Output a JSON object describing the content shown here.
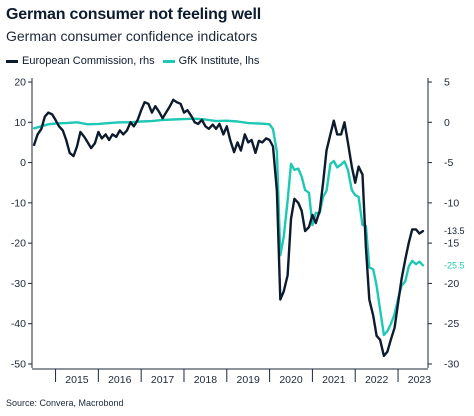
{
  "header": {
    "title": "German consumer not feeling well",
    "subtitle": "German consumer confidence indicators"
  },
  "legend": [
    {
      "label": "European Commission, rhs",
      "color": "#0d1b2e"
    },
    {
      "label": "GfK Institute, lhs",
      "color": "#1fc8b4"
    }
  ],
  "source": "Source: Convera, Macrobond",
  "chart_data": {
    "type": "line",
    "title": "German consumer confidence indicators",
    "x_range": [
      2014.45,
      2023.7
    ],
    "x_ticks": [
      "2015",
      "2016",
      "2017",
      "2018",
      "2019",
      "2020",
      "2021",
      "2022",
      "2023"
    ],
    "left_axis": {
      "range": [
        -51,
        21
      ],
      "ticks": [
        20,
        10,
        0,
        -10,
        -20,
        -30,
        -40,
        -50
      ],
      "series": "GfK Institute, lhs"
    },
    "right_axis": {
      "range": [
        -30.5,
        5.5
      ],
      "ticks": [
        5,
        0,
        -5,
        -10,
        -15,
        -20,
        -25,
        -30
      ],
      "series": "European Commission, rhs"
    },
    "grid": false,
    "legend_position": "top-left",
    "series": [
      {
        "name": "European Commission, rhs",
        "axis": "right",
        "color": "#0d1b2e",
        "end_label": "-13.5",
        "points": [
          [
            2014.5,
            -2.8
          ],
          [
            2014.58,
            -1.5
          ],
          [
            2014.67,
            -0.8
          ],
          [
            2014.75,
            0.7
          ],
          [
            2014.83,
            1.2
          ],
          [
            2014.92,
            1.0
          ],
          [
            2015.0,
            0.3
          ],
          [
            2015.08,
            -0.5
          ],
          [
            2015.17,
            -1.0
          ],
          [
            2015.25,
            -2.2
          ],
          [
            2015.33,
            -3.8
          ],
          [
            2015.42,
            -4.2
          ],
          [
            2015.5,
            -3.0
          ],
          [
            2015.58,
            -1.2
          ],
          [
            2015.67,
            -1.8
          ],
          [
            2015.75,
            -2.5
          ],
          [
            2015.83,
            -3.2
          ],
          [
            2015.92,
            -2.6
          ],
          [
            2016.0,
            -1.2
          ],
          [
            2016.08,
            -2.0
          ],
          [
            2016.17,
            -1.5
          ],
          [
            2016.25,
            -2.2
          ],
          [
            2016.33,
            -1.5
          ],
          [
            2016.42,
            -1.8
          ],
          [
            2016.5,
            -1.0
          ],
          [
            2016.58,
            -1.5
          ],
          [
            2016.67,
            -1.0
          ],
          [
            2016.75,
            0.0
          ],
          [
            2016.83,
            -0.5
          ],
          [
            2016.92,
            0.3
          ],
          [
            2017.0,
            1.5
          ],
          [
            2017.08,
            2.5
          ],
          [
            2017.17,
            2.3
          ],
          [
            2017.25,
            1.2
          ],
          [
            2017.33,
            2.0
          ],
          [
            2017.42,
            1.3
          ],
          [
            2017.5,
            0.5
          ],
          [
            2017.58,
            1.2
          ],
          [
            2017.67,
            2.0
          ],
          [
            2017.75,
            2.8
          ],
          [
            2017.83,
            2.5
          ],
          [
            2017.92,
            2.3
          ],
          [
            2018.0,
            1.2
          ],
          [
            2018.08,
            1.5
          ],
          [
            2018.17,
            0.8
          ],
          [
            2018.25,
            0.0
          ],
          [
            2018.33,
            -0.2
          ],
          [
            2018.42,
            0.3
          ],
          [
            2018.5,
            -0.5
          ],
          [
            2018.58,
            -0.8
          ],
          [
            2018.67,
            -0.3
          ],
          [
            2018.75,
            -0.8
          ],
          [
            2018.83,
            -0.2
          ],
          [
            2018.92,
            -1.5
          ],
          [
            2019.0,
            -0.5
          ],
          [
            2019.08,
            -2.2
          ],
          [
            2019.17,
            -3.7
          ],
          [
            2019.25,
            -2.5
          ],
          [
            2019.33,
            -3.5
          ],
          [
            2019.42,
            -1.5
          ],
          [
            2019.5,
            -2.5
          ],
          [
            2019.58,
            -2.2
          ],
          [
            2019.67,
            -3.8
          ],
          [
            2019.75,
            -2.3
          ],
          [
            2019.83,
            -2.5
          ],
          [
            2019.92,
            -2.0
          ],
          [
            2020.0,
            -2.2
          ],
          [
            2020.08,
            -3.0
          ],
          [
            2020.17,
            -8.5
          ],
          [
            2020.25,
            -22.0
          ],
          [
            2020.33,
            -21.0
          ],
          [
            2020.42,
            -19.0
          ],
          [
            2020.5,
            -12.0
          ],
          [
            2020.58,
            -9.5
          ],
          [
            2020.67,
            -10.0
          ],
          [
            2020.75,
            -11.0
          ],
          [
            2020.83,
            -13.5
          ],
          [
            2020.92,
            -13.0
          ],
          [
            2021.0,
            -11.5
          ],
          [
            2021.08,
            -12.5
          ],
          [
            2021.17,
            -11.0
          ],
          [
            2021.25,
            -7.5
          ],
          [
            2021.33,
            -3.5
          ],
          [
            2021.42,
            -1.5
          ],
          [
            2021.5,
            0.2
          ],
          [
            2021.58,
            -1.5
          ],
          [
            2021.67,
            -1.5
          ],
          [
            2021.75,
            0.0
          ],
          [
            2021.83,
            -2.5
          ],
          [
            2021.92,
            -5.5
          ],
          [
            2022.0,
            -7.5
          ],
          [
            2022.08,
            -5.5
          ],
          [
            2022.17,
            -6.5
          ],
          [
            2022.25,
            -15.5
          ],
          [
            2022.33,
            -22.0
          ],
          [
            2022.42,
            -24.0
          ],
          [
            2022.5,
            -26.5
          ],
          [
            2022.58,
            -27.0
          ],
          [
            2022.67,
            -29.0
          ],
          [
            2022.75,
            -28.5
          ],
          [
            2022.83,
            -27.0
          ],
          [
            2022.92,
            -25.5
          ],
          [
            2023.0,
            -22.5
          ],
          [
            2023.08,
            -19.5
          ],
          [
            2023.17,
            -17.0
          ],
          [
            2023.25,
            -15.0
          ],
          [
            2023.33,
            -13.3
          ],
          [
            2023.42,
            -13.3
          ],
          [
            2023.5,
            -13.8
          ],
          [
            2023.58,
            -13.5
          ]
        ]
      },
      {
        "name": "GfK Institute, lhs",
        "axis": "left",
        "color": "#1fc8b4",
        "end_label": "-25.5",
        "points": [
          [
            2014.5,
            8.5
          ],
          [
            2014.67,
            9.0
          ],
          [
            2014.83,
            9.5
          ],
          [
            2015.0,
            9.7
          ],
          [
            2015.25,
            9.8
          ],
          [
            2015.5,
            10.0
          ],
          [
            2015.75,
            9.5
          ],
          [
            2016.0,
            9.6
          ],
          [
            2016.25,
            9.8
          ],
          [
            2016.5,
            10.0
          ],
          [
            2016.75,
            10.0
          ],
          [
            2017.0,
            10.2
          ],
          [
            2017.25,
            10.3
          ],
          [
            2017.5,
            10.6
          ],
          [
            2017.75,
            10.7
          ],
          [
            2018.0,
            10.8
          ],
          [
            2018.25,
            10.9
          ],
          [
            2018.5,
            10.7
          ],
          [
            2018.75,
            10.3
          ],
          [
            2019.0,
            10.4
          ],
          [
            2019.25,
            10.2
          ],
          [
            2019.5,
            9.8
          ],
          [
            2019.75,
            9.7
          ],
          [
            2019.92,
            9.6
          ],
          [
            2020.0,
            9.5
          ],
          [
            2020.08,
            8.3
          ],
          [
            2020.17,
            2.7
          ],
          [
            2020.25,
            -23.0
          ],
          [
            2020.33,
            -18.5
          ],
          [
            2020.42,
            -9.5
          ],
          [
            2020.5,
            -0.3
          ],
          [
            2020.58,
            -1.8
          ],
          [
            2020.67,
            -1.5
          ],
          [
            2020.75,
            -3.5
          ],
          [
            2020.83,
            -6.8
          ],
          [
            2020.92,
            -7.5
          ],
          [
            2021.0,
            -15.5
          ],
          [
            2021.08,
            -12.5
          ],
          [
            2021.17,
            -12.5
          ],
          [
            2021.25,
            -8.5
          ],
          [
            2021.33,
            -7.0
          ],
          [
            2021.42,
            -0.3
          ],
          [
            2021.5,
            0.4
          ],
          [
            2021.58,
            -1.2
          ],
          [
            2021.67,
            -0.5
          ],
          [
            2021.75,
            0.3
          ],
          [
            2021.83,
            -1.8
          ],
          [
            2021.92,
            -6.8
          ],
          [
            2022.0,
            -8.1
          ],
          [
            2022.08,
            -8.5
          ],
          [
            2022.17,
            -15.5
          ],
          [
            2022.25,
            -15.7
          ],
          [
            2022.33,
            -26.0
          ],
          [
            2022.42,
            -26.5
          ],
          [
            2022.5,
            -30.6
          ],
          [
            2022.58,
            -36.5
          ],
          [
            2022.67,
            -42.8
          ],
          [
            2022.75,
            -41.9
          ],
          [
            2022.83,
            -40.1
          ],
          [
            2022.92,
            -37.6
          ],
          [
            2023.0,
            -33.9
          ],
          [
            2023.08,
            -30.6
          ],
          [
            2023.17,
            -29.5
          ],
          [
            2023.25,
            -25.8
          ],
          [
            2023.33,
            -24.4
          ],
          [
            2023.42,
            -25.2
          ],
          [
            2023.5,
            -24.6
          ],
          [
            2023.58,
            -25.5
          ]
        ]
      }
    ]
  }
}
